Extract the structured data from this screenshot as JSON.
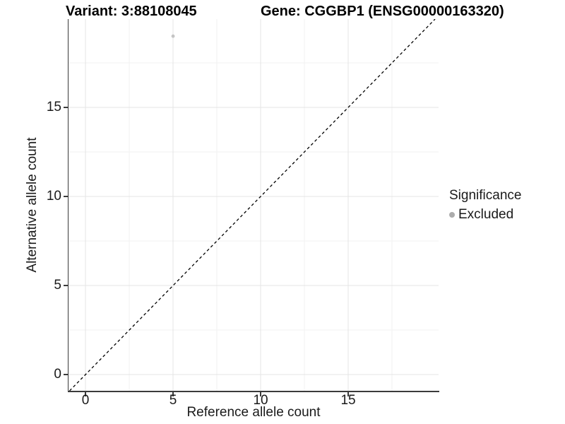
{
  "titles": {
    "variant": "Variant: 3:88108045",
    "gene": "Gene: CGGBP1 (ENSG00000163320)"
  },
  "chart_data": {
    "type": "scatter",
    "xlabel": "Reference allele count",
    "ylabel": "Alternative allele count",
    "xlim": [
      -0.97,
      20.16
    ],
    "ylim": [
      -0.91,
      19.96
    ],
    "x_ticks": [
      0,
      5,
      10,
      15
    ],
    "y_ticks": [
      0,
      5,
      10,
      15
    ],
    "x_minor_ticks": [
      2.5,
      7.5,
      12.5,
      17.5
    ],
    "y_minor_ticks": [
      2.5,
      7.5,
      12.5,
      17.5
    ],
    "grid": true,
    "points": [
      {
        "x": 5,
        "y": 19,
        "series": "Excluded"
      }
    ],
    "abline": {
      "slope": 1,
      "intercept": 0,
      "style": "dashed"
    },
    "legend_position": "right"
  },
  "legend": {
    "title": "Significance",
    "entries": [
      {
        "label": "Excluded",
        "color": "#acacac"
      }
    ]
  },
  "colors": {
    "point": "#c4c4c4",
    "grid_major": "#e4e4e4",
    "grid_minor": "#f2f2f2",
    "axis": "#3b3b3b",
    "abline": "#000000",
    "tick_label": "#1a1a1a"
  }
}
